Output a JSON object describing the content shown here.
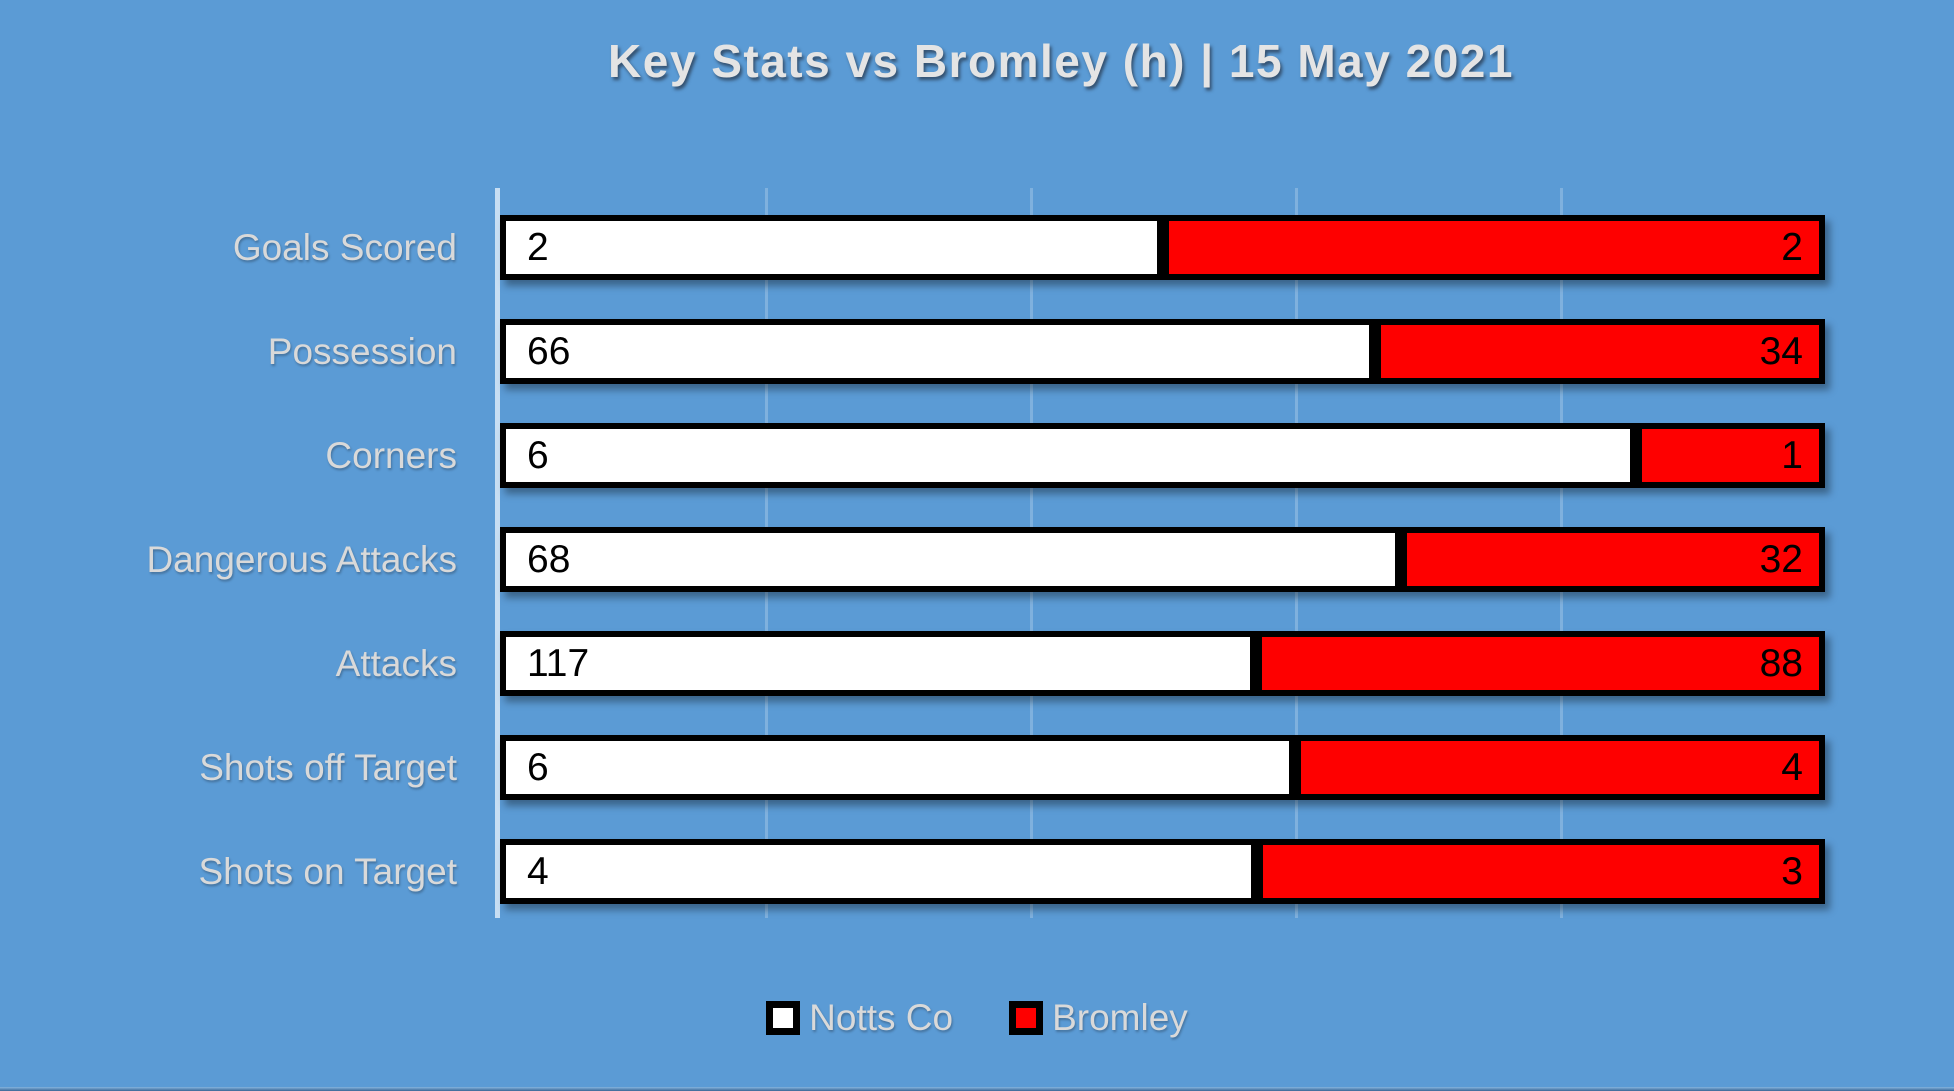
{
  "title": "Key Stats vs Bromley (h) | 15 May 2021",
  "colors": {
    "background": "#5B9BD5",
    "bar_border": "#000000",
    "notts_fill": "#FFFFFF",
    "bromley_fill": "#FE0000",
    "label_text": "#D9D9D9",
    "value_text": "#000000"
  },
  "legend": {
    "items": [
      {
        "label": "Notts Co",
        "color": "#FFFFFF"
      },
      {
        "label": "Bromley",
        "color": "#FE0000"
      }
    ],
    "position": "bottom"
  },
  "chart_data": {
    "type": "bar",
    "subtype": "horizontal-100pct-stacked",
    "title": "Key Stats vs Bromley (h) | 15 May 2021",
    "categories": [
      "Goals Scored",
      "Possession",
      "Corners",
      "Dangerous Attacks",
      "Attacks",
      "Shots off Target",
      "Shots on Target"
    ],
    "series": [
      {
        "name": "Notts Co",
        "color": "#FFFFFF",
        "values": [
          2,
          66,
          6,
          68,
          117,
          6,
          4
        ]
      },
      {
        "name": "Bromley",
        "color": "#FE0000",
        "values": [
          2,
          34,
          1,
          32,
          88,
          4,
          3
        ]
      }
    ],
    "xlabel": "",
    "ylabel": "",
    "axis": {
      "min": 0,
      "max": 100,
      "unit": "percent",
      "gridline_interval": 20,
      "grid": true
    },
    "legend_position": "bottom"
  }
}
